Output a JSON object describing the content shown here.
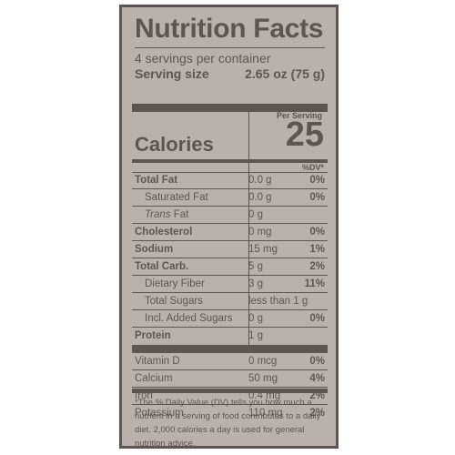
{
  "label": {
    "title": "Nutrition Facts",
    "servings": "4 servings per container",
    "serving_size_label": "Serving size",
    "serving_size_value": "2.65 oz (75 g)",
    "per_serving": "Per Serving",
    "calories_label": "Calories",
    "calories_value": "25",
    "dv_header": "%DV*",
    "nutrients": [
      {
        "label": "Total Fat",
        "amount": "0.0 g",
        "dv": "0%"
      },
      {
        "label": "Saturated Fat",
        "amount": "0.0 g",
        "dv": "0%"
      },
      {
        "label": "Trans",
        "label_rest": " Fat",
        "amount": "0 g",
        "dv": ""
      },
      {
        "label": "Cholesterol",
        "amount": "0 mg",
        "dv": "0%"
      },
      {
        "label": "Sodium",
        "amount": "15 mg",
        "dv": "1%"
      },
      {
        "label": "Total Carb.",
        "amount": "5 g",
        "dv": "2%"
      },
      {
        "label": "Dietary Fiber",
        "amount": "3 g",
        "dv": "11%"
      },
      {
        "label": "Total Sugars",
        "amount": "less than 1 g",
        "dv": ""
      },
      {
        "label": "Incl. Added Sugars",
        "amount": "0 g",
        "dv": "0%"
      },
      {
        "label": "Protein",
        "amount": "1 g",
        "dv": ""
      }
    ],
    "vitamins": [
      {
        "label": "Vitamin D",
        "amount": "0 mcg",
        "dv": "0%"
      },
      {
        "label": "Calcium",
        "amount": "50 mg",
        "dv": "4%"
      },
      {
        "label": "Iron",
        "amount": "0.4 mg",
        "dv": "2%"
      },
      {
        "label": "Potassium",
        "amount": "110 mg",
        "dv": "2%"
      }
    ],
    "footnote": "*The % Daily Value (DV) tells you how much a nutrient in a serving of food contributes to a daily diet. 2,000 calories a day is used for general nutrition advice.",
    "colors": {
      "panel": "#b9b2ac",
      "ink": "#5d5552"
    }
  }
}
